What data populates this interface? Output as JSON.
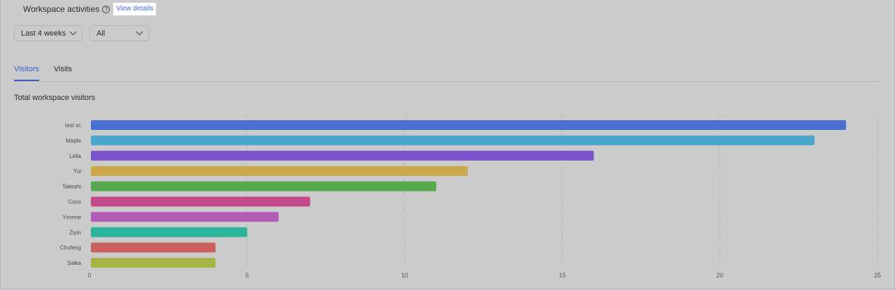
{
  "header": {
    "title": "Workspace activities",
    "help_icon": "question-circle-icon",
    "view_details_label": "View details"
  },
  "filters": {
    "period": "Last 4 weeks",
    "scope": "All"
  },
  "tabs": [
    {
      "label": "Visitors",
      "active": true
    },
    {
      "label": "Visits",
      "active": false
    }
  ],
  "chart_title": "Total workspace visitors",
  "chart_data": {
    "type": "bar",
    "orientation": "horizontal",
    "title": "Total workspace visitors",
    "categories": [
      "test vc",
      "Maple",
      "Leila",
      "Yui",
      "Takeshi",
      "Coco",
      "Yvonne",
      "Ziyin",
      "Chufeng",
      "Saika"
    ],
    "values": [
      24,
      23,
      16,
      12,
      11,
      7,
      6,
      5,
      4,
      4
    ],
    "colors": [
      "#4a6fd0",
      "#4aa6cd",
      "#7b52c9",
      "#cca84c",
      "#58a84e",
      "#c44a8c",
      "#b35cb5",
      "#2bb39b",
      "#cc5f5f",
      "#a7b343"
    ],
    "xlim": [
      0,
      25
    ],
    "xticks": [
      0,
      5,
      10,
      15,
      20,
      25
    ],
    "grid": true
  }
}
